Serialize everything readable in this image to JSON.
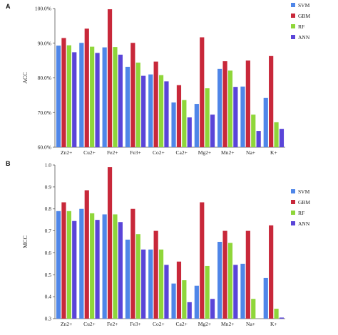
{
  "palette": {
    "SVM": "#4f86e8",
    "GBM": "#c8283a",
    "RF": "#8fd63a",
    "ANN": "#5a45d8"
  },
  "chart_data": [
    {
      "panel": "A",
      "type": "bar",
      "ylabel": "ACC",
      "ylim": [
        60,
        100
      ],
      "yticks": [
        60,
        70,
        80,
        90,
        100
      ],
      "ytick_labels": [
        "60.0%",
        "70.0%",
        "80.0%",
        "90.0%",
        "100.0%"
      ],
      "legend_position": "top-right",
      "categories": [
        "Zn2+",
        "Cu2+",
        "Fe2+",
        "Fe3+",
        "Co2+",
        "Ca2+",
        "Mg2+",
        "Mn2+",
        "Na+",
        "K+"
      ],
      "series": [
        {
          "name": "SVM",
          "values": [
            89.3,
            90.1,
            88.8,
            83.2,
            81.0,
            72.9,
            72.5,
            82.6,
            77.5,
            74.2
          ]
        },
        {
          "name": "GBM",
          "values": [
            91.5,
            94.2,
            99.8,
            90.1,
            84.7,
            77.9,
            91.7,
            84.8,
            85.0,
            86.3
          ]
        },
        {
          "name": "RF",
          "values": [
            89.4,
            89.0,
            88.9,
            84.4,
            80.8,
            73.6,
            77.0,
            82.1,
            69.4,
            67.2
          ]
        },
        {
          "name": "ANN",
          "values": [
            87.4,
            87.2,
            86.7,
            80.6,
            79.0,
            68.6,
            69.4,
            77.4,
            64.7,
            65.3
          ]
        }
      ]
    },
    {
      "panel": "B",
      "type": "bar",
      "ylabel": "MCC",
      "ylim": [
        0.3,
        1.0
      ],
      "yticks": [
        0.3,
        0.4,
        0.5,
        0.6,
        0.7,
        0.8,
        0.9,
        1.0
      ],
      "ytick_labels": [
        "0.3",
        "0.4",
        "0.5",
        "0.6",
        "0.7",
        "0.8",
        "0.9",
        "1.0"
      ],
      "legend_position": "top-right",
      "categories": [
        "Zn2+",
        "Cu2+",
        "Fe2+",
        "Fe3+",
        "Co2+",
        "Ca2+",
        "Mg2+",
        "Mn2+",
        "Na+",
        "K+"
      ],
      "series": [
        {
          "name": "SVM",
          "values": [
            0.79,
            0.8,
            0.775,
            0.66,
            0.615,
            0.46,
            0.45,
            0.65,
            0.55,
            0.485
          ]
        },
        {
          "name": "GBM",
          "values": [
            0.83,
            0.885,
            0.99,
            0.8,
            0.7,
            0.56,
            0.83,
            0.7,
            0.7,
            0.725
          ]
        },
        {
          "name": "RF",
          "values": [
            0.79,
            0.78,
            0.775,
            0.685,
            0.615,
            0.475,
            0.54,
            0.645,
            0.39,
            0.345
          ]
        },
        {
          "name": "ANN",
          "values": [
            0.745,
            0.75,
            0.74,
            0.615,
            0.545,
            0.375,
            0.39,
            0.545,
            0.3,
            0.305
          ]
        }
      ]
    }
  ]
}
